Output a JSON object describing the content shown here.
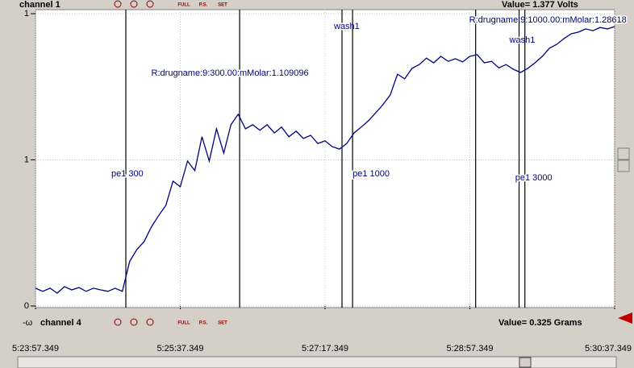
{
  "top_bar": {
    "channel": "channel 1",
    "readout": "Value=  1.377 Volts"
  },
  "bottom_bar": {
    "channel": "channel 4",
    "readout": "Value=  0.325 Grams",
    "marker": "-ω"
  },
  "toolbar_buttons": [
    "FULL",
    "P.S.",
    "SET"
  ],
  "chart_data": {
    "type": "line",
    "color": "#000080",
    "grid": true,
    "xlim": [
      0,
      400
    ],
    "xticks": [
      {
        "value": 0,
        "label": "5:23:57.349"
      },
      {
        "value": 100,
        "label": "5:25:37.349"
      },
      {
        "value": 200,
        "label": "5:27:17.349"
      },
      {
        "value": 300,
        "label": "5:28:57.349"
      },
      {
        "value": 400,
        "label": "5:30:37.349"
      }
    ],
    "ylim": [
      0.5,
      1.5
    ],
    "yticks": [
      {
        "value": 0.5,
        "label": "0"
      },
      1,
      {
        "value": 1.5,
        "label": "1"
      }
    ],
    "x": [
      0,
      5,
      10,
      15,
      20,
      25,
      30,
      35,
      40,
      45,
      50,
      55,
      60,
      65,
      70,
      75,
      80,
      85,
      90,
      95,
      100,
      105,
      110,
      115,
      120,
      125,
      130,
      135,
      140,
      145,
      150,
      155,
      160,
      165,
      170,
      175,
      180,
      185,
      190,
      195,
      200,
      205,
      210,
      215,
      220,
      225,
      230,
      235,
      240,
      245,
      250,
      255,
      260,
      265,
      270,
      275,
      280,
      285,
      290,
      295,
      300,
      305,
      310,
      315,
      320,
      325,
      330,
      335,
      340,
      345,
      350,
      355,
      360,
      365,
      370,
      375,
      380,
      385,
      390,
      395,
      400
    ],
    "values": [
      0.561,
      0.55,
      0.561,
      0.544,
      0.566,
      0.555,
      0.563,
      0.55,
      0.561,
      0.555,
      0.55,
      0.561,
      0.55,
      0.652,
      0.693,
      0.72,
      0.77,
      0.809,
      0.844,
      0.927,
      0.908,
      0.996,
      0.963,
      1.079,
      0.996,
      1.106,
      1.023,
      1.12,
      1.156,
      1.106,
      1.12,
      1.101,
      1.12,
      1.092,
      1.112,
      1.079,
      1.098,
      1.073,
      1.084,
      1.056,
      1.065,
      1.045,
      1.037,
      1.056,
      1.092,
      1.112,
      1.134,
      1.161,
      1.189,
      1.222,
      1.293,
      1.277,
      1.313,
      1.326,
      1.348,
      1.332,
      1.354,
      1.337,
      1.346,
      1.335,
      1.354,
      1.36,
      1.332,
      1.337,
      1.315,
      1.326,
      1.31,
      1.299,
      1.313,
      1.332,
      1.354,
      1.382,
      1.395,
      1.415,
      1.431,
      1.437,
      1.448,
      1.442,
      1.453,
      1.448,
      1.456
    ],
    "events": [
      {
        "x": 62.4,
        "label": "pe1 300"
      },
      {
        "x": 141,
        "label": "R:drugname:9:300.00:mMolar:1.109096"
      },
      {
        "x": 211.7,
        "label": "wash1"
      },
      {
        "x": 219,
        "label": "pe1 1000"
      },
      {
        "x": 304,
        "label": "R:drugname:9:1000.00:mMolar:1.28618"
      },
      {
        "x": 334,
        "label": "wash1"
      },
      {
        "x": 338,
        "label": "pe1 3000"
      }
    ]
  }
}
